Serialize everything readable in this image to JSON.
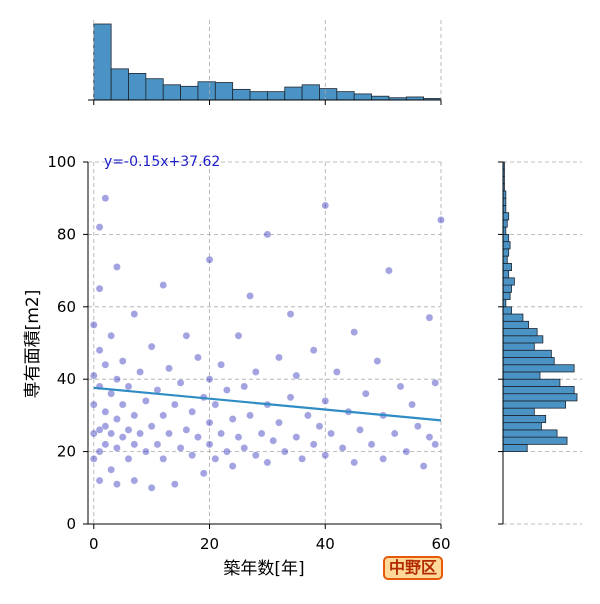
{
  "chart_data": {
    "type": "scatter",
    "xlabel": "築年数[年]",
    "ylabel": "専有面積[m2]",
    "xlim": [
      -1,
      60
    ],
    "ylim": [
      0,
      100
    ],
    "x_ticks": [
      0,
      20,
      40,
      60
    ],
    "y_ticks": [
      0,
      20,
      40,
      60,
      80,
      100
    ],
    "grid": true,
    "regression": {
      "slope": -0.15,
      "intercept": 37.62,
      "label": "y=-0.15x+37.62"
    },
    "marginal_x": {
      "type": "histogram",
      "bin_edges": [
        0,
        3,
        6,
        9,
        12,
        15,
        18,
        21,
        24,
        27,
        30,
        33,
        36,
        39,
        42,
        45,
        48,
        51,
        54,
        57,
        60
      ],
      "relative_heights": [
        1.0,
        0.41,
        0.35,
        0.28,
        0.2,
        0.18,
        0.24,
        0.23,
        0.14,
        0.11,
        0.11,
        0.17,
        0.2,
        0.15,
        0.11,
        0.08,
        0.05,
        0.03,
        0.04,
        0.02
      ]
    },
    "marginal_y": {
      "type": "histogram",
      "bin_edges": [
        0,
        2,
        4,
        6,
        8,
        10,
        12,
        14,
        16,
        18,
        20,
        22,
        24,
        26,
        28,
        30,
        32,
        34,
        36,
        38,
        40,
        42,
        44,
        46,
        48,
        50,
        52,
        54,
        56,
        58,
        60,
        62,
        64,
        66,
        68,
        70,
        72,
        74,
        76,
        78,
        80,
        82,
        84,
        86,
        88,
        90,
        92,
        94,
        96,
        98,
        100
      ],
      "relative_heights": [
        0,
        0,
        0,
        0,
        0,
        0,
        0,
        0,
        0,
        0,
        0.17,
        0.45,
        0.38,
        0.27,
        0.3,
        0.22,
        0.44,
        0.52,
        0.5,
        0.4,
        0.26,
        0.5,
        0.36,
        0.34,
        0.22,
        0.28,
        0.24,
        0.18,
        0.14,
        0.06,
        0.02,
        0.05,
        0.06,
        0.08,
        0.04,
        0.06,
        0.03,
        0.04,
        0.05,
        0.04,
        0.02,
        0.03,
        0.04,
        0.02,
        0.02,
        0.02,
        0.01,
        0.01,
        0.01,
        0.01
      ]
    },
    "points": [
      [
        0,
        18
      ],
      [
        0,
        25
      ],
      [
        0,
        33
      ],
      [
        0,
        41
      ],
      [
        0,
        55
      ],
      [
        1,
        12
      ],
      [
        1,
        20
      ],
      [
        1,
        26
      ],
      [
        1,
        38
      ],
      [
        1,
        48
      ],
      [
        1,
        65
      ],
      [
        1,
        82
      ],
      [
        2,
        22
      ],
      [
        2,
        27
      ],
      [
        2,
        31
      ],
      [
        2,
        44
      ],
      [
        2,
        90
      ],
      [
        3,
        15
      ],
      [
        3,
        25
      ],
      [
        3,
        36
      ],
      [
        3,
        52
      ],
      [
        4,
        11
      ],
      [
        4,
        21
      ],
      [
        4,
        29
      ],
      [
        4,
        40
      ],
      [
        4,
        71
      ],
      [
        5,
        24
      ],
      [
        5,
        33
      ],
      [
        5,
        45
      ],
      [
        6,
        18
      ],
      [
        6,
        26
      ],
      [
        6,
        38
      ],
      [
        7,
        12
      ],
      [
        7,
        22
      ],
      [
        7,
        30
      ],
      [
        7,
        58
      ],
      [
        8,
        25
      ],
      [
        8,
        42
      ],
      [
        9,
        20
      ],
      [
        9,
        34
      ],
      [
        10,
        10
      ],
      [
        10,
        27
      ],
      [
        10,
        49
      ],
      [
        11,
        22
      ],
      [
        11,
        37
      ],
      [
        12,
        18
      ],
      [
        12,
        30
      ],
      [
        12,
        66
      ],
      [
        13,
        25
      ],
      [
        13,
        43
      ],
      [
        14,
        11
      ],
      [
        14,
        33
      ],
      [
        15,
        21
      ],
      [
        15,
        39
      ],
      [
        16,
        26
      ],
      [
        16,
        52
      ],
      [
        17,
        19
      ],
      [
        17,
        31
      ],
      [
        18,
        24
      ],
      [
        18,
        46
      ],
      [
        19,
        14
      ],
      [
        19,
        35
      ],
      [
        20,
        22
      ],
      [
        20,
        28
      ],
      [
        20,
        40
      ],
      [
        20,
        73
      ],
      [
        21,
        18
      ],
      [
        21,
        33
      ],
      [
        22,
        25
      ],
      [
        22,
        44
      ],
      [
        23,
        20
      ],
      [
        23,
        37
      ],
      [
        24,
        16
      ],
      [
        24,
        29
      ],
      [
        25,
        24
      ],
      [
        25,
        52
      ],
      [
        26,
        21
      ],
      [
        26,
        38
      ],
      [
        27,
        30
      ],
      [
        27,
        63
      ],
      [
        28,
        19
      ],
      [
        28,
        42
      ],
      [
        29,
        25
      ],
      [
        30,
        17
      ],
      [
        30,
        33
      ],
      [
        30,
        80
      ],
      [
        31,
        23
      ],
      [
        32,
        28
      ],
      [
        32,
        46
      ],
      [
        33,
        20
      ],
      [
        34,
        35
      ],
      [
        34,
        58
      ],
      [
        35,
        24
      ],
      [
        35,
        41
      ],
      [
        36,
        18
      ],
      [
        37,
        30
      ],
      [
        38,
        22
      ],
      [
        38,
        48
      ],
      [
        39,
        27
      ],
      [
        40,
        19
      ],
      [
        40,
        34
      ],
      [
        40,
        88
      ],
      [
        41,
        25
      ],
      [
        42,
        42
      ],
      [
        43,
        21
      ],
      [
        44,
        31
      ],
      [
        45,
        17
      ],
      [
        45,
        53
      ],
      [
        46,
        26
      ],
      [
        47,
        36
      ],
      [
        48,
        22
      ],
      [
        49,
        45
      ],
      [
        50,
        18
      ],
      [
        50,
        30
      ],
      [
        51,
        70
      ],
      [
        52,
        25
      ],
      [
        53,
        38
      ],
      [
        54,
        20
      ],
      [
        55,
        33
      ],
      [
        56,
        27
      ],
      [
        57,
        16
      ],
      [
        58,
        24
      ],
      [
        58,
        57
      ],
      [
        59,
        22
      ],
      [
        59,
        39
      ],
      [
        60,
        84
      ]
    ]
  },
  "badge": {
    "label": "中野区"
  },
  "colors": {
    "scatter_point": "#1a1ab4",
    "regression_line": "#2f8cc4",
    "histogram_fill": "#4c93c5",
    "histogram_edge": "#1d2630",
    "equation_text": "#1e1ec8",
    "grid": "#aaaaaa",
    "badge_fill": "#ffd99a",
    "badge_border": "#e8580a",
    "badge_text": "#b22a00"
  }
}
